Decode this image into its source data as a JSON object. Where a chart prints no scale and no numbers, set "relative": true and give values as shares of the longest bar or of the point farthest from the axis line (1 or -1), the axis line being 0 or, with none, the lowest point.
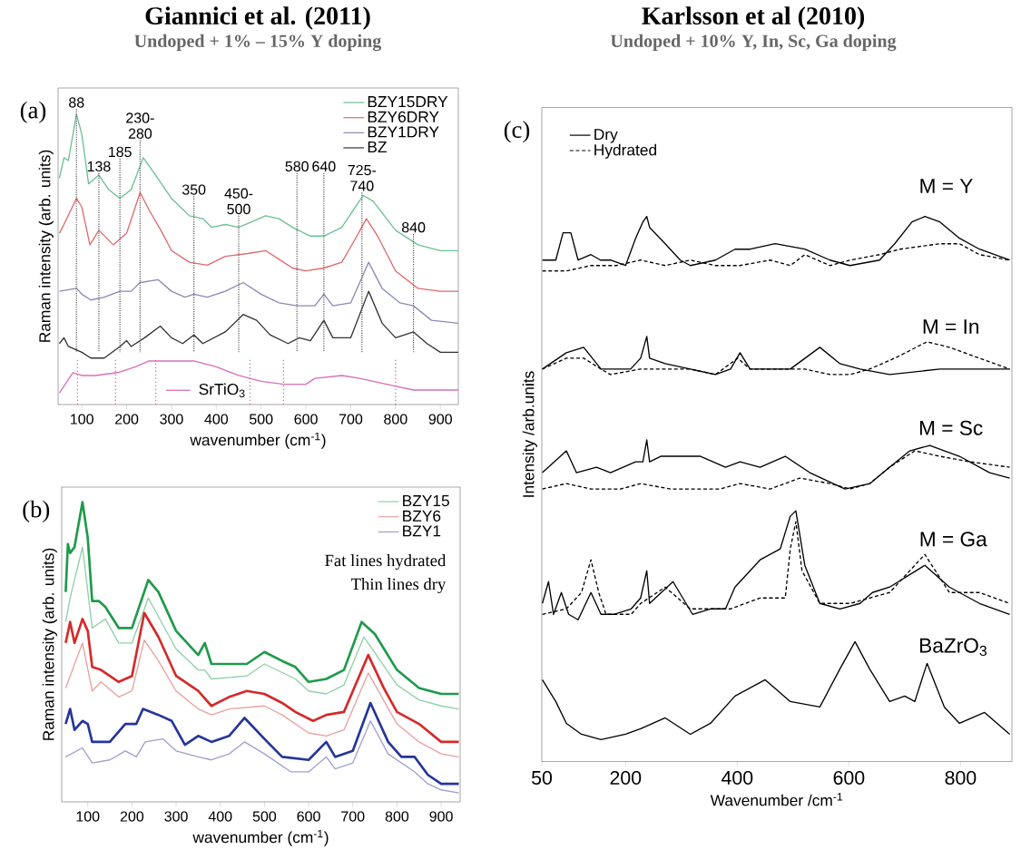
{
  "chart_data": [
    {
      "type": "line",
      "relative": true,
      "title": "Giannici et al. (2011)",
      "subtitle": "Undoped + 1% – 15% Y doping",
      "xlabel": "wavenumber (cm$^{-1}$)",
      "ylabel": "Raman intensity (arb. units)",
      "xlim": [
        47,
        940
      ],
      "xticks": [
        100,
        200,
        300,
        400,
        500,
        600,
        700,
        800,
        900
      ],
      "legend": "top right",
      "series": [
        {
          "name": "BZY15DRY",
          "color": "#6cc090",
          "x": [
            50,
            60,
            70,
            88,
            100,
            115,
            138,
            160,
            185,
            210,
            237,
            260,
            300,
            340,
            370,
            390,
            420,
            450,
            480,
            510,
            540,
            570,
            610,
            640,
            680,
            710,
            728,
            750,
            800,
            850,
            900,
            940
          ],
          "values": [
            0.78,
            0.85,
            0.84,
            1.0,
            0.93,
            0.76,
            0.79,
            0.74,
            0.71,
            0.74,
            0.85,
            0.8,
            0.71,
            0.65,
            0.64,
            0.61,
            0.62,
            0.61,
            0.63,
            0.65,
            0.64,
            0.61,
            0.58,
            0.58,
            0.61,
            0.68,
            0.72,
            0.7,
            0.6,
            0.55,
            0.53,
            0.53
          ]
        },
        {
          "name": "BZY6DRY",
          "color": "#e06a6a",
          "x": [
            50,
            60,
            88,
            100,
            118,
            138,
            170,
            200,
            230,
            250,
            280,
            300,
            340,
            380,
            420,
            470,
            510,
            540,
            570,
            600,
            640,
            680,
            710,
            735,
            760,
            800,
            850,
            900,
            940
          ],
          "values": [
            0.59,
            0.62,
            0.71,
            0.68,
            0.55,
            0.6,
            0.55,
            0.59,
            0.73,
            0.67,
            0.59,
            0.53,
            0.49,
            0.48,
            0.51,
            0.52,
            0.53,
            0.5,
            0.47,
            0.46,
            0.47,
            0.49,
            0.57,
            0.64,
            0.58,
            0.46,
            0.4,
            0.39,
            0.39
          ]
        },
        {
          "name": "BZY1DRY",
          "color": "#8a8ab8",
          "x": [
            50,
            88,
            100,
            120,
            150,
            185,
            210,
            230,
            270,
            300,
            330,
            350,
            380,
            420,
            460,
            500,
            540,
            580,
            620,
            640,
            660,
            700,
            740,
            770,
            810,
            840,
            880,
            940
          ],
          "values": [
            0.39,
            0.4,
            0.38,
            0.36,
            0.37,
            0.39,
            0.39,
            0.42,
            0.43,
            0.39,
            0.37,
            0.38,
            0.37,
            0.39,
            0.42,
            0.38,
            0.35,
            0.34,
            0.34,
            0.38,
            0.34,
            0.35,
            0.49,
            0.4,
            0.35,
            0.34,
            0.29,
            0.28
          ]
        },
        {
          "name": "BZ",
          "color": "#333333",
          "x": [
            50,
            60,
            70,
            100,
            120,
            150,
            185,
            200,
            210,
            240,
            275,
            300,
            325,
            350,
            370,
            420,
            460,
            490,
            520,
            560,
            585,
            610,
            640,
            660,
            700,
            740,
            770,
            800,
            840,
            870,
            900,
            940
          ],
          "values": [
            0.21,
            0.23,
            0.2,
            0.18,
            0.16,
            0.16,
            0.2,
            0.22,
            0.2,
            0.23,
            0.27,
            0.23,
            0.21,
            0.24,
            0.21,
            0.25,
            0.31,
            0.29,
            0.24,
            0.21,
            0.23,
            0.22,
            0.29,
            0.23,
            0.23,
            0.39,
            0.28,
            0.23,
            0.25,
            0.21,
            0.18,
            0.18
          ]
        },
        {
          "name": "SrTiO$_{3}$",
          "color": "#d870b8",
          "x": [
            50,
            80,
            100,
            130,
            180,
            220,
            250,
            300,
            350,
            400,
            450,
            500,
            550,
            600,
            620,
            680,
            720,
            780,
            840,
            900,
            940
          ],
          "values": [
            0.04,
            0.11,
            0.1,
            0.1,
            0.11,
            0.13,
            0.15,
            0.15,
            0.15,
            0.13,
            0.1,
            0.08,
            0.07,
            0.07,
            0.09,
            0.1,
            0.09,
            0.07,
            0.05,
            0.05,
            0.05
          ]
        }
      ],
      "ref_lines": [
        {
          "axis": "x",
          "value": 90,
          "color": "#e060a0",
          "line_style": "dotted"
        },
        {
          "axis": "x",
          "value": 175,
          "color": "#e060a0",
          "line_style": "dotted"
        },
        {
          "axis": "x",
          "value": 265,
          "color": "#e060a0",
          "line_style": "dotted"
        },
        {
          "axis": "x",
          "value": 475,
          "color": "#e060a0",
          "line_style": "dotted"
        },
        {
          "axis": "x",
          "value": 550,
          "color": "#e060a0",
          "line_style": "dotted"
        },
        {
          "axis": "x",
          "value": 800,
          "color": "#e060a0",
          "line_style": "dotted"
        },
        {
          "axis": "x",
          "value": 88,
          "label": "88",
          "color": "#555555",
          "line_style": "dotted"
        },
        {
          "axis": "x",
          "value": 138,
          "label": "138",
          "color": "#555555",
          "line_style": "dotted"
        },
        {
          "axis": "x",
          "value": 185,
          "label": "185",
          "color": "#555555",
          "line_style": "dotted"
        },
        {
          "axis": "x",
          "value": 230,
          "label": "230-280",
          "color": "#555555",
          "line_style": "dotted"
        },
        {
          "axis": "x",
          "value": 350,
          "label": "350",
          "color": "#555555",
          "line_style": "dotted"
        },
        {
          "axis": "x",
          "value": 450,
          "label": "450-500",
          "color": "#555555",
          "line_style": "dotted"
        },
        {
          "axis": "x",
          "value": 580,
          "label": "580",
          "color": "#555555",
          "line_style": "dotted"
        },
        {
          "axis": "x",
          "value": 640,
          "label": "640",
          "color": "#555555",
          "line_style": "dotted"
        },
        {
          "axis": "x",
          "value": 725,
          "label": "725-740",
          "color": "#555555",
          "line_style": "dotted"
        },
        {
          "axis": "x",
          "value": 840,
          "label": "840",
          "color": "#555555",
          "line_style": "dotted"
        }
      ],
      "annotations": [
        "(a)"
      ]
    },
    {
      "type": "line",
      "relative": true,
      "xlabel": "wavenumber (cm$^{-1}$)",
      "ylabel": "Raman intensity (arb. units)",
      "xlim": [
        41,
        943
      ],
      "xticks": [
        100,
        200,
        300,
        400,
        500,
        600,
        700,
        800,
        900
      ],
      "legend": "top right",
      "series": [
        {
          "name": "BZY15",
          "color": "#8fd0a8",
          "x": [
            50,
            60,
            88,
            110,
            140,
            170,
            200,
            237,
            300,
            350,
            365,
            380,
            460,
            500,
            570,
            600,
            640,
            680,
            725,
            800,
            850,
            900,
            940
          ],
          "values": [
            0.6,
            0.68,
            0.85,
            0.58,
            0.61,
            0.53,
            0.53,
            0.68,
            0.51,
            0.44,
            0.44,
            0.41,
            0.42,
            0.46,
            0.41,
            0.37,
            0.36,
            0.39,
            0.55,
            0.39,
            0.34,
            0.32,
            0.31
          ]
        },
        {
          "color": "#1e9a4a",
          "x": [
            50,
            55,
            60,
            70,
            88,
            100,
            110,
            125,
            140,
            170,
            200,
            237,
            260,
            300,
            350,
            365,
            380,
            420,
            460,
            500,
            540,
            570,
            600,
            640,
            680,
            720,
            750,
            800,
            850,
            900,
            940
          ],
          "values": [
            0.7,
            0.86,
            0.83,
            0.85,
            1.0,
            0.88,
            0.67,
            0.67,
            0.65,
            0.58,
            0.58,
            0.74,
            0.7,
            0.57,
            0.49,
            0.53,
            0.46,
            0.46,
            0.46,
            0.5,
            0.47,
            0.45,
            0.4,
            0.41,
            0.44,
            0.6,
            0.56,
            0.44,
            0.38,
            0.36,
            0.36
          ]
        },
        {
          "name": "BZY6",
          "color": "#eaa0a0",
          "x": [
            50,
            88,
            110,
            130,
            170,
            200,
            228,
            260,
            300,
            350,
            380,
            420,
            500,
            540,
            600,
            640,
            680,
            735,
            800,
            850,
            900,
            940
          ],
          "values": [
            0.38,
            0.53,
            0.37,
            0.4,
            0.35,
            0.37,
            0.54,
            0.47,
            0.37,
            0.31,
            0.29,
            0.31,
            0.32,
            0.29,
            0.23,
            0.22,
            0.24,
            0.43,
            0.26,
            0.2,
            0.16,
            0.15
          ]
        },
        {
          "color": "#d42a2a",
          "x": [
            50,
            60,
            70,
            88,
            100,
            110,
            130,
            170,
            200,
            228,
            260,
            300,
            350,
            380,
            420,
            460,
            500,
            540,
            570,
            610,
            640,
            680,
            735,
            770,
            800,
            850,
            900,
            940
          ],
          "values": [
            0.53,
            0.6,
            0.53,
            0.61,
            0.57,
            0.45,
            0.44,
            0.4,
            0.42,
            0.63,
            0.55,
            0.42,
            0.37,
            0.32,
            0.35,
            0.37,
            0.36,
            0.33,
            0.3,
            0.27,
            0.29,
            0.3,
            0.49,
            0.38,
            0.3,
            0.26,
            0.2,
            0.2
          ]
        },
        {
          "name": "BZY1",
          "color": "#a0a0cc",
          "x": [
            50,
            88,
            110,
            150,
            185,
            210,
            230,
            270,
            300,
            350,
            380,
            420,
            455,
            500,
            560,
            600,
            640,
            660,
            700,
            740,
            780,
            840,
            870,
            900,
            940
          ],
          "values": [
            0.15,
            0.18,
            0.13,
            0.14,
            0.17,
            0.15,
            0.2,
            0.21,
            0.17,
            0.15,
            0.14,
            0.16,
            0.2,
            0.16,
            0.1,
            0.1,
            0.15,
            0.11,
            0.13,
            0.27,
            0.16,
            0.1,
            0.06,
            0.04,
            0.03
          ]
        },
        {
          "color": "#25359a",
          "x": [
            50,
            60,
            70,
            88,
            100,
            110,
            150,
            185,
            210,
            225,
            260,
            290,
            320,
            350,
            380,
            420,
            455,
            500,
            540,
            600,
            640,
            660,
            700,
            740,
            780,
            810,
            840,
            870,
            900,
            940
          ],
          "values": [
            0.26,
            0.31,
            0.24,
            0.27,
            0.26,
            0.2,
            0.2,
            0.26,
            0.26,
            0.31,
            0.29,
            0.27,
            0.19,
            0.22,
            0.2,
            0.22,
            0.28,
            0.21,
            0.15,
            0.14,
            0.2,
            0.15,
            0.17,
            0.33,
            0.2,
            0.15,
            0.15,
            0.09,
            0.06,
            0.06
          ]
        }
      ],
      "annotations": [
        "(b)",
        "Fat lines hydrated",
        "Thin lines dry"
      ]
    },
    {
      "type": "line",
      "relative": true,
      "title": "Karlsson et al (2010)",
      "subtitle": "Undoped + 10% Y, In, Sc, Ga doping",
      "xlabel": "Wavenumber /cm$^{-1}$",
      "ylabel": "Intensity /arb.units",
      "xlim": [
        50,
        892
      ],
      "xticks": [
        50,
        200,
        400,
        600,
        800
      ],
      "legend": "top left",
      "series": [
        {
          "name": "Dry",
          "color": "#000000",
          "line_style": "solid",
          "x": [
            51,
            75,
            88,
            102,
            115,
            138,
            155,
            173,
            200,
            218,
            231,
            238,
            243,
            271,
            298,
            316,
            361,
            396,
            423,
            468,
            521,
            566,
            602,
            655,
            682,
            713,
            736,
            763,
            798,
            834,
            888
          ],
          "values": [
            0.92,
            0.92,
            0.97,
            0.97,
            0.92,
            0.93,
            0.92,
            0.92,
            0.91,
            0.96,
            0.99,
            1.0,
            0.98,
            0.95,
            0.92,
            0.91,
            0.92,
            0.94,
            0.94,
            0.95,
            0.94,
            0.92,
            0.91,
            0.92,
            0.95,
            0.99,
            1.0,
            0.99,
            0.96,
            0.94,
            0.92
          ]
        },
        {
          "name": "Hydrated",
          "color": "#000000",
          "line_style": "dashed",
          "x": [
            51,
            94,
            138,
            183,
            227,
            271,
            316,
            361,
            405,
            459,
            495,
            521,
            566,
            602,
            655,
            691,
            763,
            798,
            834,
            888
          ],
          "values": [
            0.9,
            0.9,
            0.91,
            0.91,
            0.92,
            0.91,
            0.92,
            0.91,
            0.91,
            0.92,
            0.91,
            0.93,
            0.91,
            0.92,
            0.93,
            0.94,
            0.95,
            0.95,
            0.93,
            0.92
          ]
        },
        {
          "color": "#000000",
          "line_style": "solid",
          "x": [
            51,
            94,
            125,
            156,
            173,
            209,
            227,
            238,
            243,
            271,
            316,
            361,
            388,
            405,
            423,
            495,
            548,
            584,
            620,
            673,
            763,
            888
          ],
          "values": [
            0.72,
            0.75,
            0.76,
            0.72,
            0.72,
            0.72,
            0.74,
            0.78,
            0.74,
            0.73,
            0.72,
            0.71,
            0.72,
            0.75,
            0.72,
            0.72,
            0.76,
            0.73,
            0.72,
            0.71,
            0.72,
            0.72
          ]
        },
        {
          "color": "#000000",
          "line_style": "dashed",
          "x": [
            51,
            94,
            125,
            156,
            173,
            227,
            271,
            316,
            361,
            401,
            423,
            477,
            521,
            566,
            602,
            637,
            682,
            740,
            780,
            834,
            888
          ],
          "values": [
            0.72,
            0.74,
            0.74,
            0.72,
            0.71,
            0.72,
            0.72,
            0.72,
            0.71,
            0.74,
            0.72,
            0.72,
            0.72,
            0.71,
            0.71,
            0.72,
            0.74,
            0.77,
            0.76,
            0.74,
            0.72
          ]
        },
        {
          "color": "#000000",
          "line_style": "solid",
          "x": [
            51,
            94,
            112,
            148,
            173,
            218,
            231,
            238,
            243,
            263,
            290,
            334,
            379,
            405,
            441,
            486,
            530,
            593,
            638,
            673,
            709,
            745,
            798,
            852,
            888
          ],
          "values": [
            0.53,
            0.57,
            0.53,
            0.54,
            0.53,
            0.55,
            0.55,
            0.59,
            0.55,
            0.56,
            0.56,
            0.56,
            0.54,
            0.55,
            0.54,
            0.56,
            0.53,
            0.5,
            0.51,
            0.54,
            0.57,
            0.58,
            0.56,
            0.53,
            0.52
          ]
        },
        {
          "color": "#000000",
          "line_style": "dashed",
          "x": [
            51,
            94,
            138,
            191,
            227,
            280,
            325,
            369,
            405,
            459,
            512,
            566,
            602,
            637,
            673,
            718,
            763,
            816,
            888
          ],
          "values": [
            0.5,
            0.51,
            0.5,
            0.5,
            0.51,
            0.5,
            0.5,
            0.5,
            0.51,
            0.5,
            0.52,
            0.51,
            0.5,
            0.51,
            0.54,
            0.57,
            0.56,
            0.55,
            0.54
          ]
        },
        {
          "color": "#000000",
          "line_style": "solid",
          "x": [
            51,
            62,
            71,
            85,
            98,
            115,
            138,
            156,
            179,
            210,
            227,
            238,
            243,
            285,
            320,
            352,
            379,
            396,
            441,
            477,
            495,
            505,
            521,
            548,
            584,
            620,
            642,
            673,
            736,
            780,
            834,
            888
          ],
          "values": [
            0.29,
            0.33,
            0.27,
            0.31,
            0.27,
            0.26,
            0.31,
            0.27,
            0.27,
            0.28,
            0.3,
            0.35,
            0.29,
            0.33,
            0.27,
            0.28,
            0.28,
            0.32,
            0.37,
            0.39,
            0.45,
            0.46,
            0.36,
            0.29,
            0.28,
            0.29,
            0.31,
            0.32,
            0.36,
            0.32,
            0.29,
            0.27
          ]
        },
        {
          "color": "#000000",
          "line_style": "dashed",
          "x": [
            51,
            94,
            121,
            138,
            152,
            165,
            210,
            227,
            271,
            316,
            388,
            441,
            486,
            495,
            505,
            516,
            548,
            602,
            673,
            736,
            780,
            834,
            888
          ],
          "values": [
            0.27,
            0.28,
            0.31,
            0.37,
            0.31,
            0.27,
            0.27,
            0.29,
            0.32,
            0.28,
            0.28,
            0.3,
            0.3,
            0.39,
            0.44,
            0.35,
            0.29,
            0.29,
            0.31,
            0.38,
            0.31,
            0.31,
            0.29
          ]
        },
        {
          "color": "#000000",
          "line_style": "solid",
          "x": [
            51,
            75,
            94,
            121,
            156,
            200,
            227,
            271,
            316,
            352,
            396,
            450,
            495,
            548,
            584,
            611,
            637,
            673,
            700,
            718,
            740,
            771,
            798,
            843,
            888
          ],
          "values": [
            0.15,
            0.11,
            0.07,
            0.05,
            0.04,
            0.05,
            0.06,
            0.08,
            0.05,
            0.07,
            0.12,
            0.15,
            0.11,
            0.1,
            0.17,
            0.22,
            0.17,
            0.11,
            0.12,
            0.11,
            0.18,
            0.1,
            0.07,
            0.09,
            0.05
          ]
        }
      ],
      "annotations": [
        "(c)",
        "M = Y",
        "M = In",
        "M = Sc",
        "M = Ga",
        "BaZrO$_{3}$"
      ]
    }
  ]
}
